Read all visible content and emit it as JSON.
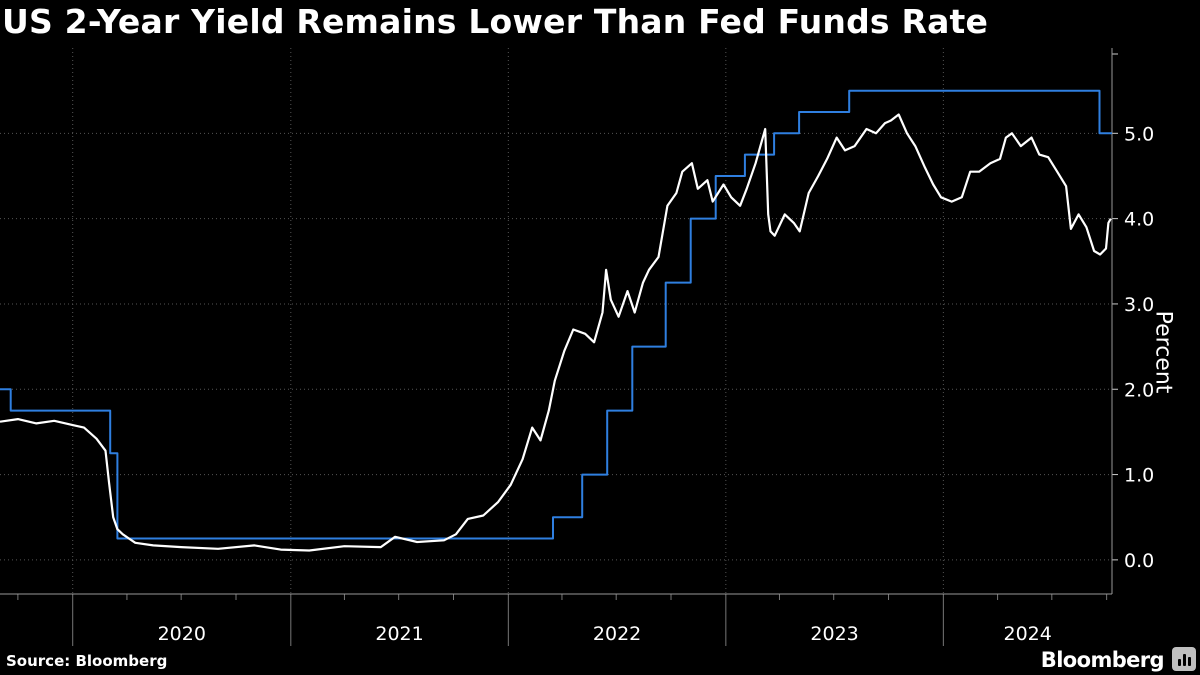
{
  "title": "US 2-Year Yield Remains Lower Than Fed Funds Rate",
  "source": "Source: Bloomberg",
  "brand": "Bloomberg",
  "chart_data": {
    "type": "line",
    "ylabel": "Percent",
    "xlabel": "",
    "ylim": [
      -0.4,
      6.0
    ],
    "yticks": [
      0.0,
      1.0,
      2.0,
      3.0,
      4.0,
      5.0
    ],
    "ytick_labels": [
      "0.0",
      "1.0",
      "2.0",
      "3.0",
      "4.0",
      "5.0"
    ],
    "xlim": [
      "2019-09-01",
      "2024-10-10"
    ],
    "xtick_labels": [
      "2020",
      "2021",
      "2022",
      "2023",
      "2024"
    ],
    "grid": true,
    "series": [
      {
        "color": "#2f7fe0",
        "step": true,
        "points": [
          [
            "2019-09-01",
            2.0
          ],
          [
            "2019-09-19",
            1.75
          ],
          [
            "2020-03-04",
            1.25
          ],
          [
            "2020-03-16",
            0.25
          ],
          [
            "2022-03-17",
            0.5
          ],
          [
            "2022-05-05",
            1.0
          ],
          [
            "2022-06-16",
            1.75
          ],
          [
            "2022-07-28",
            2.5
          ],
          [
            "2022-09-22",
            3.25
          ],
          [
            "2022-11-03",
            4.0
          ],
          [
            "2022-12-15",
            4.5
          ],
          [
            "2023-02-02",
            4.75
          ],
          [
            "2023-03-23",
            5.0
          ],
          [
            "2023-05-04",
            5.25
          ],
          [
            "2023-07-27",
            5.5
          ],
          [
            "2024-09-19",
            5.0
          ],
          [
            "2024-10-10",
            5.0
          ]
        ]
      },
      {
        "color": "#ffffff",
        "step": false,
        "points": [
          [
            "2019-09-01",
            1.62
          ],
          [
            "2019-10-01",
            1.65
          ],
          [
            "2019-11-01",
            1.6
          ],
          [
            "2019-12-01",
            1.63
          ],
          [
            "2020-01-01",
            1.58
          ],
          [
            "2020-01-20",
            1.55
          ],
          [
            "2020-02-10",
            1.42
          ],
          [
            "2020-02-25",
            1.28
          ],
          [
            "2020-03-02",
            0.9
          ],
          [
            "2020-03-09",
            0.5
          ],
          [
            "2020-03-16",
            0.36
          ],
          [
            "2020-03-25",
            0.3
          ],
          [
            "2020-04-15",
            0.2
          ],
          [
            "2020-05-15",
            0.17
          ],
          [
            "2020-07-01",
            0.15
          ],
          [
            "2020-09-01",
            0.13
          ],
          [
            "2020-11-01",
            0.17
          ],
          [
            "2020-12-15",
            0.12
          ],
          [
            "2021-02-01",
            0.11
          ],
          [
            "2021-04-01",
            0.16
          ],
          [
            "2021-06-01",
            0.15
          ],
          [
            "2021-06-25",
            0.27
          ],
          [
            "2021-08-01",
            0.21
          ],
          [
            "2021-09-15",
            0.23
          ],
          [
            "2021-10-05",
            0.3
          ],
          [
            "2021-10-25",
            0.48
          ],
          [
            "2021-11-20",
            0.52
          ],
          [
            "2021-12-15",
            0.68
          ],
          [
            "2022-01-05",
            0.88
          ],
          [
            "2022-01-25",
            1.18
          ],
          [
            "2022-02-10",
            1.55
          ],
          [
            "2022-02-24",
            1.4
          ],
          [
            "2022-03-10",
            1.75
          ],
          [
            "2022-03-20",
            2.1
          ],
          [
            "2022-04-05",
            2.45
          ],
          [
            "2022-04-20",
            2.7
          ],
          [
            "2022-05-10",
            2.65
          ],
          [
            "2022-05-25",
            2.55
          ],
          [
            "2022-06-08",
            2.9
          ],
          [
            "2022-06-14",
            3.4
          ],
          [
            "2022-06-22",
            3.05
          ],
          [
            "2022-07-05",
            2.85
          ],
          [
            "2022-07-20",
            3.15
          ],
          [
            "2022-08-01",
            2.9
          ],
          [
            "2022-08-15",
            3.25
          ],
          [
            "2022-08-25",
            3.4
          ],
          [
            "2022-09-10",
            3.55
          ],
          [
            "2022-09-25",
            4.15
          ],
          [
            "2022-10-10",
            4.3
          ],
          [
            "2022-10-20",
            4.55
          ],
          [
            "2022-11-05",
            4.65
          ],
          [
            "2022-11-15",
            4.35
          ],
          [
            "2022-12-01",
            4.45
          ],
          [
            "2022-12-10",
            4.2
          ],
          [
            "2022-12-28",
            4.4
          ],
          [
            "2023-01-10",
            4.25
          ],
          [
            "2023-01-25",
            4.15
          ],
          [
            "2023-02-05",
            4.35
          ],
          [
            "2023-02-20",
            4.65
          ],
          [
            "2023-03-08",
            5.05
          ],
          [
            "2023-03-13",
            4.05
          ],
          [
            "2023-03-17",
            3.85
          ],
          [
            "2023-03-24",
            3.8
          ],
          [
            "2023-04-10",
            4.05
          ],
          [
            "2023-04-25",
            3.95
          ],
          [
            "2023-05-05",
            3.85
          ],
          [
            "2023-05-20",
            4.3
          ],
          [
            "2023-06-05",
            4.5
          ],
          [
            "2023-06-20",
            4.7
          ],
          [
            "2023-07-06",
            4.95
          ],
          [
            "2023-07-20",
            4.8
          ],
          [
            "2023-08-05",
            4.85
          ],
          [
            "2023-08-25",
            5.05
          ],
          [
            "2023-09-10",
            5.0
          ],
          [
            "2023-09-25",
            5.12
          ],
          [
            "2023-10-05",
            5.15
          ],
          [
            "2023-10-18",
            5.22
          ],
          [
            "2023-11-01",
            5.0
          ],
          [
            "2023-11-15",
            4.85
          ],
          [
            "2023-12-01",
            4.6
          ],
          [
            "2023-12-15",
            4.4
          ],
          [
            "2023-12-28",
            4.25
          ],
          [
            "2024-01-15",
            4.2
          ],
          [
            "2024-02-01",
            4.25
          ],
          [
            "2024-02-15",
            4.55
          ],
          [
            "2024-03-01",
            4.55
          ],
          [
            "2024-03-20",
            4.65
          ],
          [
            "2024-04-05",
            4.7
          ],
          [
            "2024-04-15",
            4.95
          ],
          [
            "2024-04-25",
            5.0
          ],
          [
            "2024-05-10",
            4.85
          ],
          [
            "2024-05-28",
            4.95
          ],
          [
            "2024-06-10",
            4.75
          ],
          [
            "2024-06-25",
            4.72
          ],
          [
            "2024-07-10",
            4.55
          ],
          [
            "2024-07-25",
            4.38
          ],
          [
            "2024-08-02",
            3.88
          ],
          [
            "2024-08-15",
            4.05
          ],
          [
            "2024-08-28",
            3.9
          ],
          [
            "2024-09-10",
            3.62
          ],
          [
            "2024-09-20",
            3.58
          ],
          [
            "2024-09-30",
            3.65
          ],
          [
            "2024-10-04",
            3.95
          ],
          [
            "2024-10-08",
            4.0
          ]
        ]
      }
    ]
  }
}
